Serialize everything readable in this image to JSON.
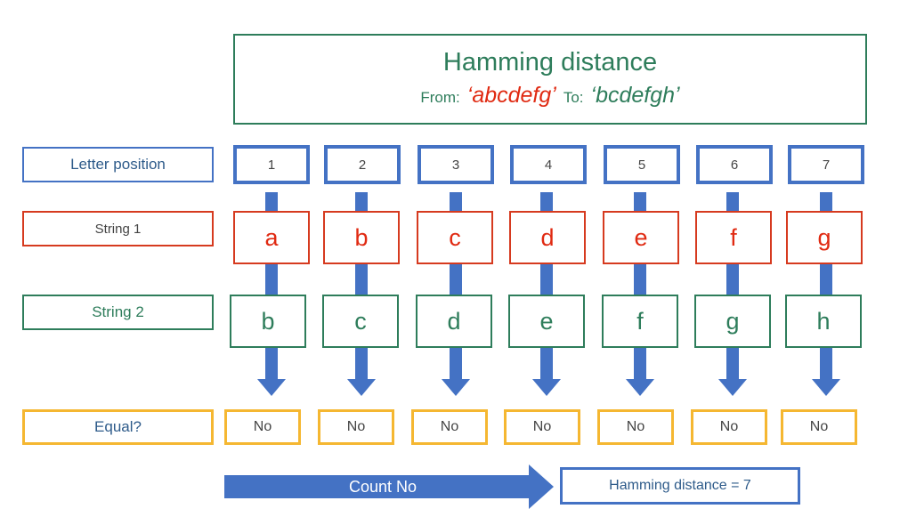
{
  "header": {
    "title": "Hamming distance",
    "from_label": "From:",
    "from_value": "‘abcdefg’",
    "to_label": "To:",
    "to_value": "‘bcdefgh’"
  },
  "row_labels": {
    "position": "Letter position",
    "string1": "String 1",
    "string2": "String 2",
    "equal": "Equal?"
  },
  "columns": [
    {
      "pos": "1",
      "s1": "a",
      "s2": "b",
      "eq": "No"
    },
    {
      "pos": "2",
      "s1": "b",
      "s2": "c",
      "eq": "No"
    },
    {
      "pos": "3",
      "s1": "c",
      "s2": "d",
      "eq": "No"
    },
    {
      "pos": "4",
      "s1": "d",
      "s2": "e",
      "eq": "No"
    },
    {
      "pos": "5",
      "s1": "e",
      "s2": "f",
      "eq": "No"
    },
    {
      "pos": "6",
      "s1": "f",
      "s2": "g",
      "eq": "No"
    },
    {
      "pos": "7",
      "s1": "g",
      "s2": "h",
      "eq": "No"
    }
  ],
  "footer": {
    "count_label": "Count No",
    "result": "Hamming distance = 7"
  },
  "colors": {
    "blue": "#4472c4",
    "red": "#e02a12",
    "green": "#2e7d5b",
    "orange": "#f5b731"
  }
}
